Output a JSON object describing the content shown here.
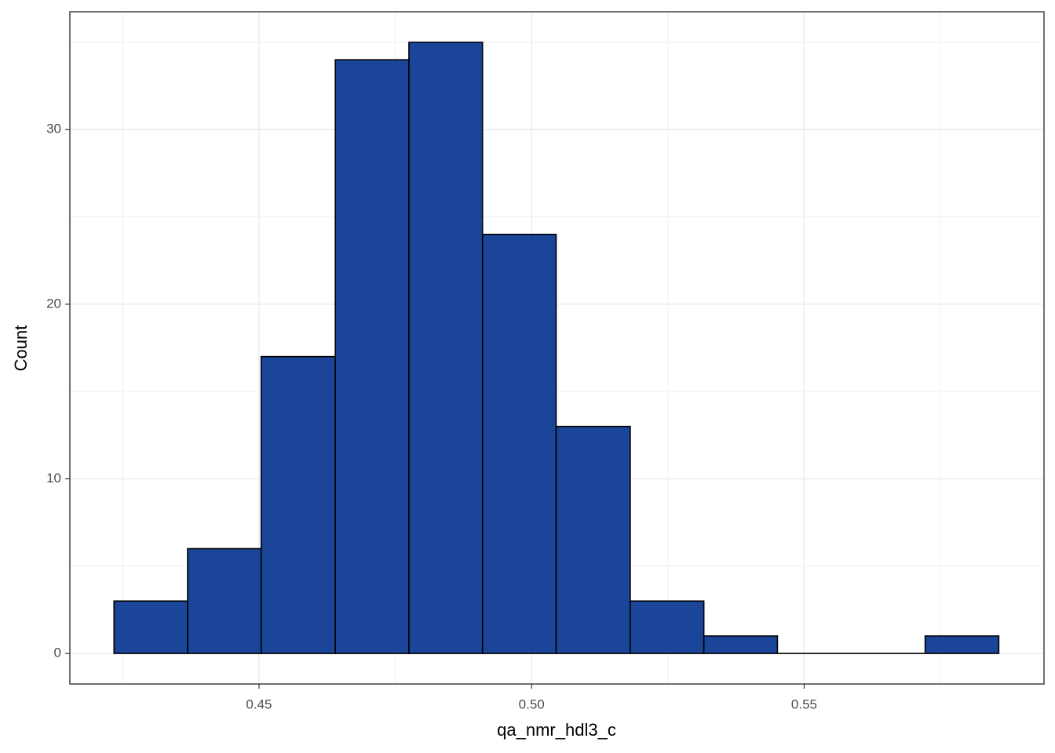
{
  "chart_data": {
    "type": "histogram",
    "x_label": "qa_nmr_hdl3_c",
    "y_label": "Count",
    "bins": [
      0.4234,
      0.4369,
      0.4504,
      0.464,
      0.4775,
      0.491,
      0.5045,
      0.5181,
      0.5316,
      0.5451,
      0.5587,
      0.5722,
      0.5857
    ],
    "values": [
      3,
      6,
      17,
      34,
      35,
      24,
      13,
      3,
      1,
      0,
      0,
      1
    ],
    "color": "#1a4599",
    "edge_color": "#000000",
    "xlim": [
      0.4153,
      0.594
    ],
    "ylim": [
      -1.75,
      36.75
    ],
    "xticks": [
      0.45,
      {
        "value": 0.5,
        "label": "0.50"
      },
      0.55
    ],
    "yticks": [
      0,
      10,
      20,
      30
    ],
    "x_minor_grid": [
      0.425,
      0.475,
      0.525,
      0.575
    ],
    "y_minor_grid": [
      5,
      15,
      25,
      35
    ],
    "grid": true
  }
}
